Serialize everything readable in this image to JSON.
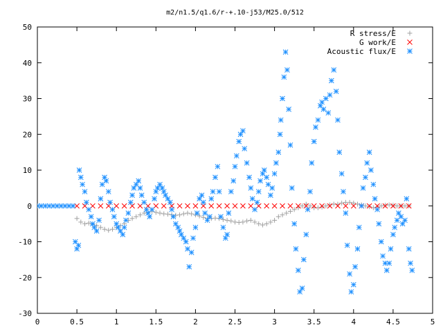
{
  "chart_data": {
    "type": "scatter",
    "title": "m2/n1.5/q1.6/r-+.10-j53/M25.0/512",
    "xlabel": "",
    "ylabel": "",
    "xlim": [
      0,
      5
    ],
    "ylim": [
      -30,
      50
    ],
    "xticks": [
      0,
      0.5,
      1,
      1.5,
      2,
      2.5,
      3,
      3.5,
      4,
      4.5,
      5
    ],
    "xtick_labels": [
      "0",
      "0.5",
      "1",
      "1.5",
      "2",
      "2.5",
      "3",
      "3.5",
      "4",
      "4.5",
      "5"
    ],
    "yticks": [
      -30,
      -20,
      -10,
      0,
      10,
      20,
      30,
      40,
      50
    ],
    "ytick_labels": [
      "-30",
      "-20",
      "-10",
      "0",
      "10",
      "20",
      "30",
      "40",
      "50"
    ],
    "grid": false,
    "legend_position": "top-right",
    "series": [
      {
        "name": "R stress/E",
        "marker": "plus",
        "color": "#a0a0a0",
        "points": [
          [
            0.5,
            -3.5
          ],
          [
            0.55,
            -4.5
          ],
          [
            0.6,
            -5
          ],
          [
            0.65,
            -4.8
          ],
          [
            0.7,
            -5.2
          ],
          [
            0.75,
            -5.5
          ],
          [
            0.8,
            -6
          ],
          [
            0.85,
            -6.5
          ],
          [
            0.9,
            -6.8
          ],
          [
            0.95,
            -6.5
          ],
          [
            1.0,
            -6
          ],
          [
            1.05,
            -5.5
          ],
          [
            1.1,
            -5
          ],
          [
            1.15,
            -4
          ],
          [
            1.2,
            -3.5
          ],
          [
            1.25,
            -3
          ],
          [
            1.3,
            -2.5
          ],
          [
            1.35,
            -2
          ],
          [
            1.4,
            -1.8
          ],
          [
            1.45,
            -1.5
          ],
          [
            1.5,
            -1.8
          ],
          [
            1.55,
            -2
          ],
          [
            1.6,
            -2.2
          ],
          [
            1.65,
            -2.3
          ],
          [
            1.7,
            -2.5
          ],
          [
            1.75,
            -2.6
          ],
          [
            1.8,
            -2.5
          ],
          [
            1.85,
            -2.2
          ],
          [
            1.9,
            -2
          ],
          [
            1.95,
            -2.2
          ],
          [
            2.0,
            -2.5
          ],
          [
            2.05,
            -2.8
          ],
          [
            2.1,
            -3.2
          ],
          [
            2.15,
            -3.5
          ],
          [
            2.2,
            -3.5
          ],
          [
            2.25,
            -3.4
          ],
          [
            2.3,
            -3.5
          ],
          [
            2.35,
            -3.8
          ],
          [
            2.4,
            -4
          ],
          [
            2.45,
            -4.2
          ],
          [
            2.5,
            -4.5
          ],
          [
            2.55,
            -4.6
          ],
          [
            2.6,
            -4.5
          ],
          [
            2.65,
            -4.2
          ],
          [
            2.7,
            -4
          ],
          [
            2.75,
            -4.5
          ],
          [
            2.8,
            -5
          ],
          [
            2.85,
            -5.3
          ],
          [
            2.9,
            -5
          ],
          [
            2.95,
            -4.5
          ],
          [
            3.0,
            -4
          ],
          [
            3.05,
            -3
          ],
          [
            3.1,
            -2.5
          ],
          [
            3.15,
            -2
          ],
          [
            3.2,
            -1.5
          ],
          [
            3.25,
            -1
          ],
          [
            3.3,
            -0.5
          ],
          [
            3.35,
            0
          ],
          [
            3.4,
            0.5
          ],
          [
            3.45,
            0
          ],
          [
            3.5,
            -0.5
          ],
          [
            3.55,
            -0.5
          ],
          [
            3.6,
            -0.3
          ],
          [
            3.65,
            0
          ],
          [
            3.7,
            0.3
          ],
          [
            3.75,
            0.5
          ],
          [
            3.8,
            0.5
          ],
          [
            3.85,
            0.8
          ],
          [
            3.9,
            1
          ],
          [
            3.95,
            1
          ],
          [
            4.0,
            0.8
          ],
          [
            4.05,
            0.5
          ],
          [
            4.1,
            0.3
          ],
          [
            4.15,
            0
          ],
          [
            4.2,
            -0.2
          ],
          [
            4.25,
            -0.5
          ],
          [
            4.3,
            -0.3
          ],
          [
            4.35,
            0
          ],
          [
            4.4,
            0.2
          ],
          [
            4.45,
            0.3
          ],
          [
            4.5,
            0.2
          ],
          [
            4.55,
            0
          ],
          [
            4.6,
            0
          ],
          [
            4.65,
            0
          ],
          [
            4.7,
            0
          ]
        ]
      },
      {
        "name": "G work/E",
        "marker": "cross",
        "color": "#ff0000",
        "points": [
          [
            0.5,
            0
          ],
          [
            0.6,
            0
          ],
          [
            0.7,
            0
          ],
          [
            0.8,
            0
          ],
          [
            0.9,
            0
          ],
          [
            1.0,
            0
          ],
          [
            1.1,
            0
          ],
          [
            1.2,
            0
          ],
          [
            1.3,
            0
          ],
          [
            1.4,
            0
          ],
          [
            1.5,
            0
          ],
          [
            1.6,
            0
          ],
          [
            1.7,
            0
          ],
          [
            1.8,
            0
          ],
          [
            1.9,
            0
          ],
          [
            2.0,
            0
          ],
          [
            2.1,
            0
          ],
          [
            2.2,
            0
          ],
          [
            2.3,
            0
          ],
          [
            2.4,
            0
          ],
          [
            2.5,
            0
          ],
          [
            2.6,
            0
          ],
          [
            2.7,
            0
          ],
          [
            2.8,
            0
          ],
          [
            2.9,
            0
          ],
          [
            3.0,
            0
          ],
          [
            3.1,
            0
          ],
          [
            3.2,
            0
          ],
          [
            3.3,
            0
          ],
          [
            3.4,
            0
          ],
          [
            3.5,
            0
          ],
          [
            3.6,
            0
          ],
          [
            3.7,
            0
          ],
          [
            3.8,
            0
          ],
          [
            3.9,
            0
          ],
          [
            4.0,
            0
          ],
          [
            4.1,
            0
          ],
          [
            4.2,
            0
          ],
          [
            4.3,
            0
          ],
          [
            4.4,
            0
          ],
          [
            4.5,
            0
          ],
          [
            4.6,
            0
          ],
          [
            4.7,
            0
          ]
        ]
      },
      {
        "name": "Acoustic flux/E",
        "marker": "star",
        "color": "#1e90ff",
        "points": [
          [
            0.0,
            0
          ],
          [
            0.05,
            0
          ],
          [
            0.1,
            0
          ],
          [
            0.15,
            0
          ],
          [
            0.2,
            0
          ],
          [
            0.25,
            0
          ],
          [
            0.3,
            0
          ],
          [
            0.35,
            0
          ],
          [
            0.4,
            0
          ],
          [
            0.45,
            0
          ],
          [
            0.48,
            -10
          ],
          [
            0.5,
            -12
          ],
          [
            0.52,
            -11
          ],
          [
            0.53,
            10
          ],
          [
            0.55,
            8
          ],
          [
            0.57,
            6
          ],
          [
            0.6,
            4
          ],
          [
            0.62,
            1
          ],
          [
            0.65,
            -1
          ],
          [
            0.68,
            -3
          ],
          [
            0.7,
            -5
          ],
          [
            0.72,
            -6
          ],
          [
            0.75,
            -7
          ],
          [
            0.78,
            -4
          ],
          [
            0.8,
            2
          ],
          [
            0.82,
            6
          ],
          [
            0.85,
            8
          ],
          [
            0.87,
            7
          ],
          [
            0.9,
            4
          ],
          [
            0.92,
            1
          ],
          [
            0.95,
            -1
          ],
          [
            0.97,
            -3
          ],
          [
            1.0,
            -5
          ],
          [
            1.02,
            -6
          ],
          [
            1.05,
            -7
          ],
          [
            1.08,
            -8
          ],
          [
            1.1,
            -6
          ],
          [
            1.12,
            -4
          ],
          [
            1.15,
            -2
          ],
          [
            1.18,
            1
          ],
          [
            1.2,
            3
          ],
          [
            1.22,
            5
          ],
          [
            1.25,
            6
          ],
          [
            1.28,
            7
          ],
          [
            1.3,
            5
          ],
          [
            1.32,
            3
          ],
          [
            1.35,
            1
          ],
          [
            1.38,
            -1
          ],
          [
            1.4,
            -2
          ],
          [
            1.42,
            -3
          ],
          [
            1.45,
            -1
          ],
          [
            1.48,
            2
          ],
          [
            1.5,
            4
          ],
          [
            1.52,
            5
          ],
          [
            1.55,
            6
          ],
          [
            1.58,
            5
          ],
          [
            1.6,
            4
          ],
          [
            1.62,
            3
          ],
          [
            1.65,
            2
          ],
          [
            1.68,
            1
          ],
          [
            1.7,
            -1
          ],
          [
            1.72,
            -3
          ],
          [
            1.75,
            -5
          ],
          [
            1.78,
            -6
          ],
          [
            1.8,
            -7
          ],
          [
            1.82,
            -8
          ],
          [
            1.85,
            -9
          ],
          [
            1.88,
            -10
          ],
          [
            1.9,
            -12
          ],
          [
            1.92,
            -17
          ],
          [
            1.95,
            -13
          ],
          [
            1.97,
            -9
          ],
          [
            2.0,
            -6
          ],
          [
            2.02,
            -2
          ],
          [
            2.05,
            2
          ],
          [
            2.08,
            3
          ],
          [
            2.1,
            1
          ],
          [
            2.12,
            -2
          ],
          [
            2.15,
            -4
          ],
          [
            2.18,
            -3
          ],
          [
            2.2,
            2
          ],
          [
            2.22,
            4
          ],
          [
            2.25,
            8
          ],
          [
            2.28,
            11
          ],
          [
            2.3,
            4
          ],
          [
            2.32,
            -3
          ],
          [
            2.35,
            -6
          ],
          [
            2.38,
            -9
          ],
          [
            2.4,
            -8
          ],
          [
            2.42,
            -2
          ],
          [
            2.45,
            4
          ],
          [
            2.48,
            7
          ],
          [
            2.5,
            11
          ],
          [
            2.52,
            14
          ],
          [
            2.55,
            18
          ],
          [
            2.57,
            20
          ],
          [
            2.6,
            21
          ],
          [
            2.62,
            16
          ],
          [
            2.65,
            12
          ],
          [
            2.68,
            8
          ],
          [
            2.7,
            5
          ],
          [
            2.72,
            2
          ],
          [
            2.75,
            -1
          ],
          [
            2.78,
            1
          ],
          [
            2.8,
            4
          ],
          [
            2.82,
            7
          ],
          [
            2.85,
            9
          ],
          [
            2.87,
            10
          ],
          [
            2.9,
            8
          ],
          [
            2.92,
            6
          ],
          [
            2.95,
            3
          ],
          [
            2.97,
            5
          ],
          [
            3.0,
            9
          ],
          [
            3.02,
            12
          ],
          [
            3.05,
            15
          ],
          [
            3.07,
            20
          ],
          [
            3.08,
            24
          ],
          [
            3.1,
            30
          ],
          [
            3.12,
            36
          ],
          [
            3.14,
            43
          ],
          [
            3.16,
            38
          ],
          [
            3.18,
            27
          ],
          [
            3.2,
            17
          ],
          [
            3.22,
            5
          ],
          [
            3.25,
            -5
          ],
          [
            3.27,
            -12
          ],
          [
            3.3,
            -18
          ],
          [
            3.32,
            -24
          ],
          [
            3.35,
            -23
          ],
          [
            3.37,
            -15
          ],
          [
            3.4,
            -8
          ],
          [
            3.42,
            -1
          ],
          [
            3.45,
            4
          ],
          [
            3.47,
            12
          ],
          [
            3.5,
            18
          ],
          [
            3.52,
            22
          ],
          [
            3.55,
            24
          ],
          [
            3.58,
            28
          ],
          [
            3.6,
            29
          ],
          [
            3.62,
            27
          ],
          [
            3.65,
            30
          ],
          [
            3.68,
            26
          ],
          [
            3.7,
            31
          ],
          [
            3.72,
            35
          ],
          [
            3.75,
            38
          ],
          [
            3.78,
            32
          ],
          [
            3.8,
            24
          ],
          [
            3.82,
            15
          ],
          [
            3.85,
            9
          ],
          [
            3.87,
            4
          ],
          [
            3.9,
            -2
          ],
          [
            3.92,
            -11
          ],
          [
            3.95,
            -19
          ],
          [
            3.97,
            -24
          ],
          [
            4.0,
            -22
          ],
          [
            4.02,
            -17
          ],
          [
            4.05,
            -12
          ],
          [
            4.07,
            -6
          ],
          [
            4.1,
            0
          ],
          [
            4.12,
            5
          ],
          [
            4.15,
            8
          ],
          [
            4.17,
            12
          ],
          [
            4.2,
            15
          ],
          [
            4.22,
            10
          ],
          [
            4.25,
            6
          ],
          [
            4.27,
            2
          ],
          [
            4.3,
            -1
          ],
          [
            4.32,
            -5
          ],
          [
            4.35,
            -10
          ],
          [
            4.37,
            -14
          ],
          [
            4.4,
            -16
          ],
          [
            4.42,
            -18
          ],
          [
            4.45,
            -16
          ],
          [
            4.47,
            -12
          ],
          [
            4.5,
            -8
          ],
          [
            4.52,
            -6
          ],
          [
            4.55,
            -4
          ],
          [
            4.57,
            -2
          ],
          [
            4.6,
            -3
          ],
          [
            4.62,
            -5
          ],
          [
            4.65,
            -4
          ],
          [
            4.67,
            2
          ],
          [
            4.7,
            -12
          ],
          [
            4.72,
            -16
          ],
          [
            4.74,
            -18
          ]
        ]
      }
    ]
  }
}
